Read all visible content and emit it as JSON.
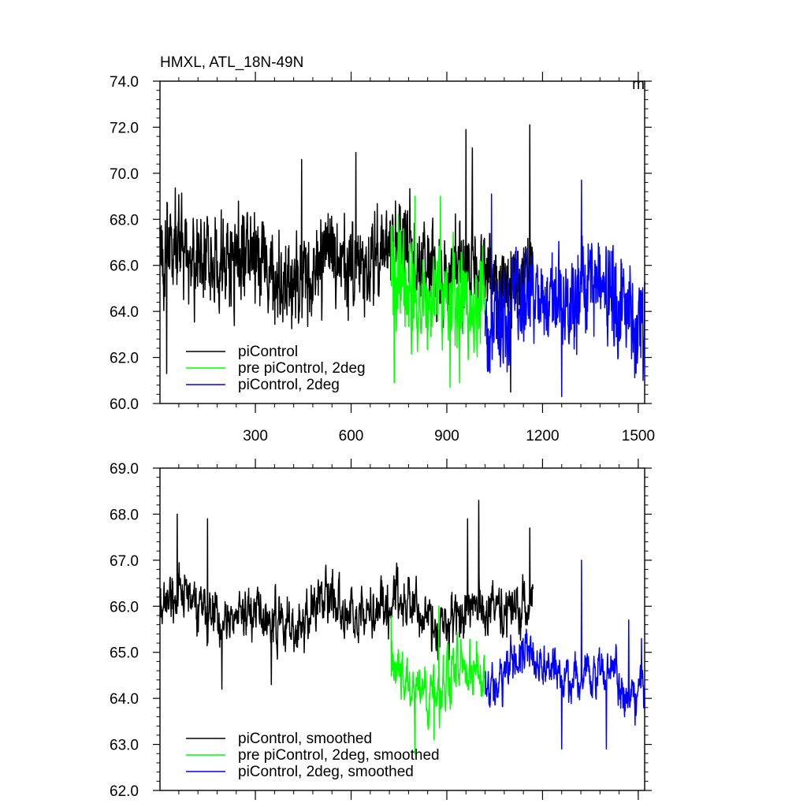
{
  "chart_data": [
    {
      "type": "line",
      "title": "HMXL, ATL_18N-49N",
      "units_label": "m",
      "xlim": [
        1,
        1520
      ],
      "ylim": [
        60.0,
        74.0
      ],
      "x_ticks": [
        300,
        600,
        900,
        1200,
        1500
      ],
      "x_tick_labels": [
        "300",
        "600",
        "900",
        "1200",
        "1500"
      ],
      "y_ticks": [
        60.0,
        62.0,
        64.0,
        66.0,
        68.0,
        70.0,
        72.0,
        74.0
      ],
      "y_tick_labels": [
        "60.0",
        "62.0",
        "64.0",
        "66.0",
        "68.0",
        "70.0",
        "72.0",
        "74.0"
      ],
      "grid": false,
      "legend_position": "bottom-left",
      "series": [
        {
          "name": "piControl",
          "color": "#000000",
          "x_range": [
            1,
            1170
          ],
          "mean": 66.0,
          "amplitude": 2.0,
          "noise": "high",
          "peaks": [
            [
              960,
              71.9
            ],
            [
              1160,
              72.1
            ],
            [
              615,
              70.9
            ],
            [
              445,
              70.6
            ],
            [
              980,
              71.1
            ],
            [
              22,
              61.3
            ],
            [
              1100,
              60.5
            ]
          ]
        },
        {
          "name": "pre piControl, 2deg",
          "color": "#00ff00",
          "x_range": [
            725,
            1020
          ],
          "mean": 64.6,
          "amplitude": 2.2,
          "noise": "high",
          "peaks": [
            [
              725,
              67.7
            ],
            [
              800,
              69.0
            ],
            [
              880,
              69.0
            ],
            [
              735,
              60.9
            ],
            [
              940,
              60.9
            ],
            [
              910,
              60.7
            ]
          ]
        },
        {
          "name": "piControl, 2deg",
          "color": "#0000ff",
          "x_range": [
            1020,
            1520
          ],
          "mean": 64.3,
          "amplitude": 2.0,
          "noise": "high",
          "peaks": [
            [
              1322,
              69.7
            ],
            [
              1040,
              69.1
            ],
            [
              1260,
              60.3
            ],
            [
              1515,
              61.0
            ]
          ]
        }
      ]
    },
    {
      "type": "line",
      "title": "",
      "xlim": [
        1,
        1520
      ],
      "ylim": [
        62.0,
        69.0
      ],
      "x_ticks": [
        300,
        600,
        900,
        1200,
        1500
      ],
      "x_tick_labels": [],
      "y_ticks": [
        62.0,
        63.0,
        64.0,
        65.0,
        66.0,
        67.0,
        68.0,
        69.0
      ],
      "y_tick_labels": [
        "62.0",
        "63.0",
        "64.0",
        "65.0",
        "66.0",
        "67.0",
        "68.0",
        "69.0"
      ],
      "grid": false,
      "legend_position": "bottom-left",
      "series": [
        {
          "name": "piControl, smoothed",
          "color": "#000000",
          "x_range": [
            1,
            1170
          ],
          "mean": 65.9,
          "amplitude": 0.9,
          "noise": "medium",
          "peaks": [
            [
              55,
              68.0
            ],
            [
              150,
              67.9
            ],
            [
              1000,
              68.3
            ],
            [
              965,
              67.9
            ],
            [
              1160,
              67.7
            ],
            [
              195,
              64.2
            ],
            [
              350,
              64.3
            ]
          ]
        },
        {
          "name": "pre piControl, 2deg, smoothed",
          "color": "#00ff00",
          "x_range": [
            725,
            1020
          ],
          "mean": 64.5,
          "amplitude": 0.9,
          "noise": "medium",
          "peaks": [
            [
              800,
              62.8
            ],
            [
              860,
              63.1
            ],
            [
              725,
              65.8
            ],
            [
              875,
              66.0
            ]
          ]
        },
        {
          "name": "piControl, 2deg, smoothed",
          "color": "#0000ff",
          "x_range": [
            1020,
            1520
          ],
          "mean": 64.5,
          "amplitude": 0.8,
          "noise": "medium",
          "peaks": [
            [
              1322,
              67.0
            ],
            [
              1260,
              62.9
            ],
            [
              1400,
              62.9
            ],
            [
              1470,
              65.7
            ],
            [
              1510,
              65.3
            ]
          ]
        }
      ]
    }
  ]
}
